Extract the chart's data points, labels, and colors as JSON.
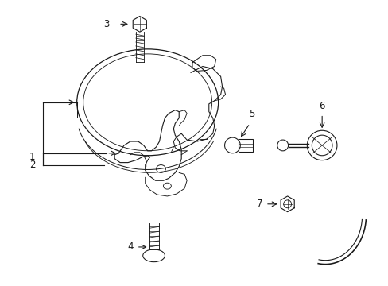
{
  "background_color": "#ffffff",
  "line_color": "#1a1a1a",
  "figsize": [
    4.89,
    3.6
  ],
  "dpi": 100,
  "label_fontsize": 8.5,
  "lw": 0.9
}
